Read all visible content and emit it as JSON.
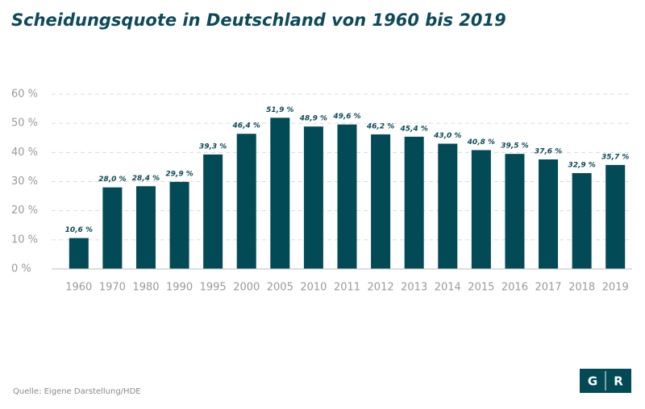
{
  "chart_data": {
    "type": "bar",
    "title": "Scheidungsquote in Deutschland von 1960 bis 2019",
    "categories": [
      "1960",
      "1970",
      "1980",
      "1990",
      "1995",
      "2000",
      "2005",
      "2010",
      "2011",
      "2012",
      "2013",
      "2014",
      "2015",
      "2016",
      "2017",
      "2018",
      "2019"
    ],
    "values": [
      10.6,
      28.0,
      28.4,
      29.9,
      39.3,
      46.4,
      51.9,
      48.9,
      49.6,
      46.2,
      45.4,
      43.0,
      40.8,
      39.5,
      37.6,
      32.9,
      35.7
    ],
    "value_labels": [
      "10,6 %",
      "28,0 %",
      "28,4 %",
      "29,9 %",
      "39,3 %",
      "46,4 %",
      "51,9 %",
      "48,9 %",
      "49,6 %",
      "46,2 %",
      "45,4 %",
      "43,0 %",
      "40,8 %",
      "39,5 %",
      "37,6 %",
      "32,9 %",
      "35,7 %"
    ],
    "color": "#024a56",
    "ylim": [
      0,
      60
    ],
    "yticks": [
      {
        "value": 0,
        "label": "0 %"
      },
      {
        "value": 10,
        "label": "10 %"
      },
      {
        "value": 20,
        "label": "20 %"
      },
      {
        "value": 30,
        "label": "30 %"
      },
      {
        "value": 40,
        "label": "40 %"
      },
      {
        "value": 50,
        "label": "50 %"
      },
      {
        "value": 60,
        "label": "60 %"
      }
    ],
    "grid": true,
    "source": "Quelle: Eigene Darstellung/HDE",
    "logo": [
      "G",
      "R"
    ]
  }
}
